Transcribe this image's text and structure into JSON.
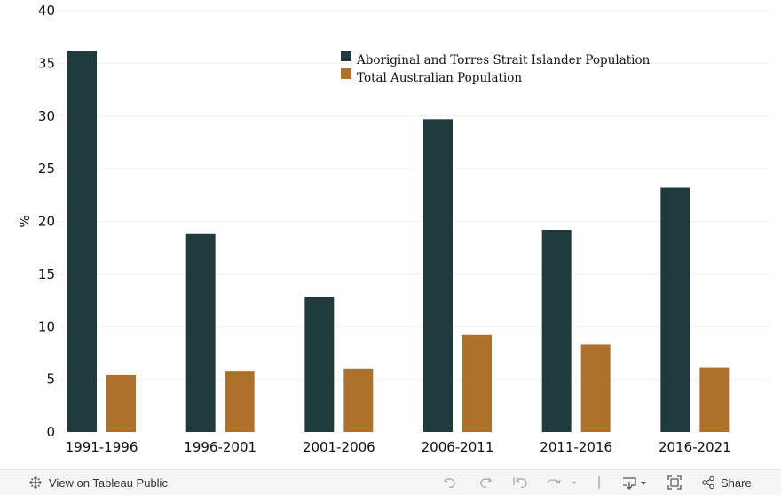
{
  "chart_data": {
    "type": "bar",
    "title": "",
    "xlabel": "",
    "ylabel": "%",
    "ylim": [
      0,
      40
    ],
    "yticks": [
      0,
      5,
      10,
      15,
      20,
      25,
      30,
      35,
      40
    ],
    "grid": true,
    "legend_position": "top-center",
    "categories": [
      "1991-1996",
      "1996-2001",
      "2001-2006",
      "2006-2011",
      "2011-2016",
      "2016-2021"
    ],
    "series": [
      {
        "name": "Aboriginal and Torres Strait Islander Population",
        "color": "#1f3b3e",
        "values": [
          36.2,
          18.8,
          12.8,
          29.7,
          19.2,
          23.2
        ]
      },
      {
        "name": "Total Australian Population",
        "color": "#ae712b",
        "values": [
          5.4,
          5.8,
          6.0,
          9.2,
          8.3,
          6.1
        ]
      }
    ]
  },
  "toolbar": {
    "view_label": "View on Tableau Public",
    "share_label": "Share",
    "icons": {
      "view": "tableau-logo-icon",
      "undo": "undo-icon",
      "redo": "redo-icon",
      "revert": "revert-icon",
      "refresh": "refresh-icon",
      "download": "download-icon",
      "fullscreen": "fullscreen-icon",
      "share": "share-icon"
    },
    "icon_color": "#555555"
  }
}
